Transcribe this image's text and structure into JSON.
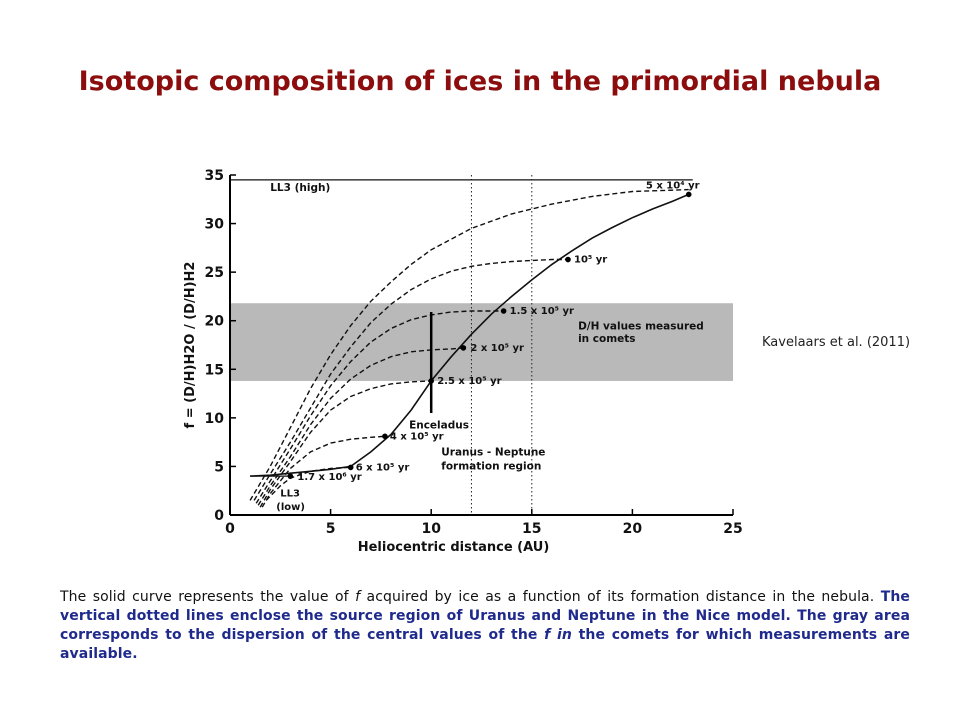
{
  "slide": {
    "title": "Isotopic composition of ices in the primordial nebula",
    "citation": "Kavelaars et al. (2011)",
    "caption_part1": "The solid curve represents the value of ",
    "caption_f1": "f",
    "caption_part2": " acquired by ice as a function of its formation distance in the nebula. ",
    "caption_em1": "The vertical dotted lines enclose the source region of Uranus and Neptune in the Nice model. The gray area corresponds to the dispersion of the central values of the ",
    "caption_em_f": "f in",
    "caption_em2": " the comets for which measurements are available."
  },
  "chart_data": {
    "type": "line",
    "xlabel": "Heliocentric distance (AU)",
    "ylabel": "f = (D/H)H2O / (D/H)H2",
    "xlim": [
      0,
      25
    ],
    "ylim": [
      0,
      35
    ],
    "xticks": [
      0,
      5,
      10,
      15,
      20,
      25
    ],
    "yticks": [
      0,
      5,
      10,
      15,
      20,
      25,
      30,
      35
    ],
    "gray_band": {
      "y_from": 13.8,
      "y_to": 21.8,
      "label_line1": "D/H values measured",
      "label_line2": "in comets"
    },
    "vertical_dotted_lines": [
      12,
      15
    ],
    "region_label_line1": "Uranus - Neptune",
    "region_label_line2": "formation region",
    "ll3_high": {
      "y": 34.5,
      "label": "LL3 (high)"
    },
    "ll3_low": {
      "y": 4,
      "label_line1": "LL3",
      "label_line2": "(low)"
    },
    "enceladus": {
      "x": 10,
      "y_low": 10.5,
      "y_high": 20.9,
      "label": "Enceladus"
    },
    "series": [
      {
        "style": "solid",
        "points": [
          [
            1.0,
            4.0
          ],
          [
            2.0,
            4.1
          ],
          [
            3.0,
            4.3
          ],
          [
            4.0,
            4.5
          ],
          [
            5.0,
            4.7
          ],
          [
            6.0,
            5.0
          ],
          [
            7.0,
            6.5
          ],
          [
            8.0,
            8.3
          ],
          [
            9.0,
            10.8
          ],
          [
            10.0,
            13.8
          ],
          [
            11.0,
            16.3
          ],
          [
            12.0,
            18.6
          ],
          [
            13.0,
            20.7
          ],
          [
            14.0,
            22.5
          ],
          [
            15.0,
            24.2
          ],
          [
            16.0,
            25.8
          ],
          [
            17.0,
            27.2
          ],
          [
            18.0,
            28.5
          ],
          [
            19.0,
            29.6
          ],
          [
            20.0,
            30.6
          ],
          [
            21.0,
            31.5
          ],
          [
            22.0,
            32.3
          ],
          [
            22.8,
            33.0
          ]
        ]
      },
      {
        "style": "dashed",
        "points": [
          [
            1.0,
            1.5
          ],
          [
            2.0,
            5.0
          ],
          [
            3.0,
            9.0
          ],
          [
            4.0,
            13.0
          ],
          [
            5.0,
            16.5
          ],
          [
            6.0,
            19.5
          ],
          [
            7.0,
            22.0
          ],
          [
            8.0,
            24.0
          ],
          [
            9.0,
            25.8
          ],
          [
            10.0,
            27.3
          ],
          [
            12.0,
            29.5
          ],
          [
            14.0,
            31.0
          ],
          [
            16.0,
            32.0
          ],
          [
            18.0,
            32.8
          ],
          [
            20.0,
            33.3
          ],
          [
            22.8,
            33.5
          ]
        ]
      },
      {
        "style": "dashed",
        "points": [
          [
            1.2,
            1.5
          ],
          [
            2.0,
            4.2
          ],
          [
            3.0,
            7.5
          ],
          [
            4.0,
            11.0
          ],
          [
            5.0,
            14.5
          ],
          [
            6.0,
            17.3
          ],
          [
            7.0,
            19.8
          ],
          [
            8.0,
            21.7
          ],
          [
            9.0,
            23.2
          ],
          [
            10.0,
            24.3
          ],
          [
            11.0,
            25.1
          ],
          [
            12.0,
            25.6
          ],
          [
            13.0,
            25.9
          ],
          [
            14.0,
            26.1
          ],
          [
            15.0,
            26.2
          ],
          [
            16.0,
            26.3
          ],
          [
            16.8,
            26.3
          ]
        ]
      },
      {
        "style": "dashed",
        "points": [
          [
            1.3,
            1.2
          ],
          [
            2.0,
            3.5
          ],
          [
            3.0,
            6.8
          ],
          [
            4.0,
            10.2
          ],
          [
            5.0,
            13.3
          ],
          [
            6.0,
            15.8
          ],
          [
            7.0,
            17.8
          ],
          [
            8.0,
            19.2
          ],
          [
            9.0,
            20.1
          ],
          [
            10.0,
            20.6
          ],
          [
            11.0,
            20.9
          ],
          [
            12.0,
            21.0
          ],
          [
            13.0,
            21.0
          ],
          [
            13.6,
            21.0
          ]
        ]
      },
      {
        "style": "dashed",
        "points": [
          [
            1.4,
            1.0
          ],
          [
            2.0,
            3.0
          ],
          [
            3.0,
            6.0
          ],
          [
            4.0,
            9.3
          ],
          [
            5.0,
            12.0
          ],
          [
            6.0,
            14.0
          ],
          [
            7.0,
            15.4
          ],
          [
            8.0,
            16.3
          ],
          [
            9.0,
            16.8
          ],
          [
            10.0,
            17.0
          ],
          [
            11.0,
            17.1
          ],
          [
            11.6,
            17.2
          ]
        ]
      },
      {
        "style": "dashed",
        "points": [
          [
            1.5,
            0.8
          ],
          [
            2.0,
            2.6
          ],
          [
            3.0,
            5.5
          ],
          [
            4.0,
            8.5
          ],
          [
            5.0,
            10.8
          ],
          [
            6.0,
            12.2
          ],
          [
            7.0,
            13.0
          ],
          [
            8.0,
            13.5
          ],
          [
            9.0,
            13.7
          ],
          [
            10.0,
            13.8
          ]
        ]
      },
      {
        "style": "dashed",
        "points": [
          [
            1.6,
            0.8
          ],
          [
            2.0,
            2.2
          ],
          [
            3.0,
            4.8
          ],
          [
            4.0,
            6.5
          ],
          [
            5.0,
            7.4
          ],
          [
            6.0,
            7.8
          ],
          [
            7.0,
            8.0
          ],
          [
            7.7,
            8.1
          ]
        ]
      },
      {
        "style": "dashed",
        "points": [
          [
            1.8,
            1.5
          ],
          [
            2.5,
            3.0
          ],
          [
            3.0,
            3.8
          ],
          [
            4.0,
            4.5
          ],
          [
            5.0,
            4.8
          ],
          [
            6.0,
            4.9
          ]
        ]
      }
    ],
    "markers": [
      {
        "x": 22.8,
        "y": 33.0,
        "label": "5 x 10⁴ yr"
      },
      {
        "x": 16.8,
        "y": 26.3,
        "label": "10⁵ yr"
      },
      {
        "x": 13.6,
        "y": 21.0,
        "label": "1.5 x 10⁵ yr"
      },
      {
        "x": 11.6,
        "y": 17.2,
        "label": "2 x 10⁵ yr"
      },
      {
        "x": 10.0,
        "y": 13.8,
        "label": "2.5 x 10⁵ yr"
      },
      {
        "x": 7.7,
        "y": 8.1,
        "label": "4 x 10⁵ yr"
      },
      {
        "x": 6.0,
        "y": 4.9,
        "label": "6 x 10⁵ yr"
      },
      {
        "x": 3.0,
        "y": 4.0,
        "label": "1.7 x 10⁶ yr"
      }
    ]
  }
}
